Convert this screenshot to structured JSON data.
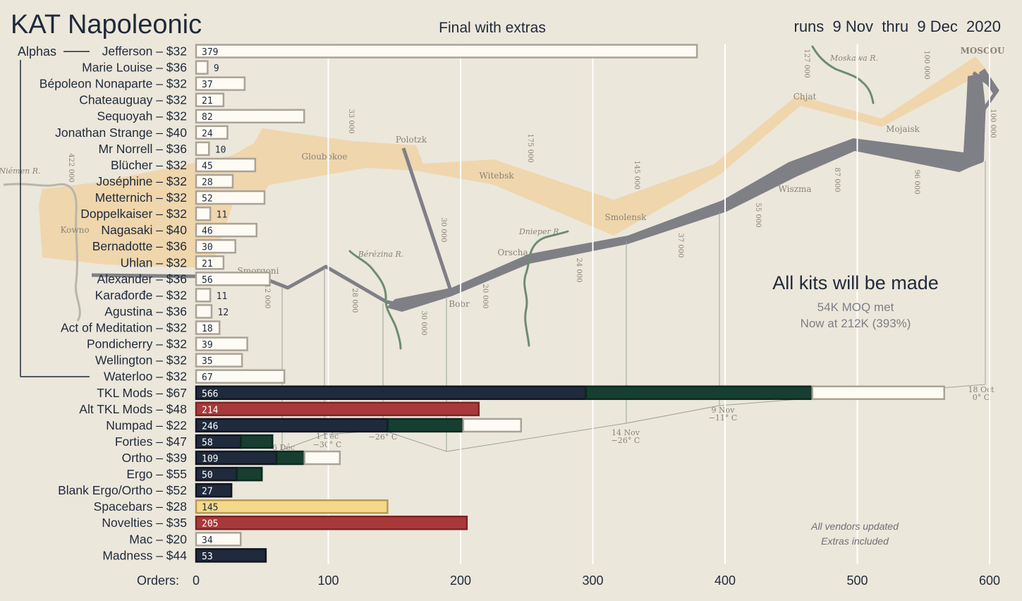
{
  "header": {
    "title": "KAT Napoleonic",
    "subtitle": "Final with extras",
    "runs": "runs  9 Nov  thru  9 Dec  2020"
  },
  "colors": {
    "background": "#ece7db",
    "white_bar": "#fdfbf4",
    "white_bar_border": "#aaa397",
    "navy": "#1f2a3d",
    "green": "#173f31",
    "red": "#a8393a",
    "yellow": "#f5d889",
    "advance_band": "#efd6ad",
    "retreat_band": "#7f7f86",
    "river": "#6d8c72",
    "map_text": "#8a8478",
    "grid": "#ffffff"
  },
  "group": {
    "label": "Alphas"
  },
  "annotation": {
    "headline": "All kits will be made",
    "line1": "54K MOQ met",
    "line2": "Now at 212K (393%)",
    "note1": "All vendors updated",
    "note2": "Extras included"
  },
  "map_labels": {
    "moscou": "MOSCOU",
    "moskwa": "Moskawa R.",
    "chjat": "Chjat",
    "mojaisk": "Mojaisk",
    "wiszma": "Wiszma",
    "smolensk": "Smolensk",
    "witebsk": "Witebsk",
    "polotzk": "Polotzk",
    "gloubokoe": "Gloubokoe",
    "niemen": "Niémen R.",
    "kowno": "Kowno",
    "smorgoni": "Smorgoni",
    "berezina": "Bérézina R.",
    "bobr": "Bobr",
    "orscha": "Orscha",
    "dnieper": "Dnieper R.",
    "n127": "127 000",
    "n100a": "100 000",
    "n100b": "100 000",
    "n175": "175 000",
    "n145": "145 000",
    "n87": "87 000",
    "n96": "96 000",
    "n55": "55 000",
    "n37": "37 000",
    "n24": "24 000",
    "n20": "20 000",
    "n30a": "30 000",
    "n30b": "30 000",
    "n28": "28 000",
    "n12": "12 000",
    "n33": "33 000",
    "n422": "422 000",
    "t18oct": "18 Oct",
    "t18oct_b": "0° C",
    "t9nov": "9 Nov",
    "t9nov_b": "−11° C",
    "t14nov": "14 Nov",
    "t14nov_b": "−26° C",
    "t26": "−26° C",
    "t1dec": "1 Déc",
    "t1dec_b": "−30° C",
    "t6dec": "6 Déc"
  },
  "chart_data": {
    "type": "bar",
    "orientation": "horizontal",
    "stacked": true,
    "xlabel": "Orders:",
    "xlim": [
      0,
      600
    ],
    "xticks": [
      0,
      100,
      200,
      300,
      400,
      500,
      600
    ],
    "grid": true,
    "categories": [
      "Jefferson – $32",
      "Marie Louise – $36",
      "Bépoleon Nonaparte – $32",
      "Chateauguay – $32",
      "Sequoyah – $32",
      "Jonathan Strange – $40",
      "Mr Norrell – $36",
      "Blücher – $32",
      "Joséphine – $32",
      "Metternich – $32",
      "Doppelkaiser – $32",
      "Nagasaki – $40",
      "Bernadotte – $36",
      "Uhlan – $32",
      "Alexander – $36",
      "Karađorđe – $32",
      "Agustina – $36",
      "Act of Meditation – $32",
      "Pondicherry – $32",
      "Wellington – $32",
      "Waterloo – $32",
      "TKL Mods – $67",
      "Alt TKL Mods – $48",
      "Numpad – $22",
      "Forties – $47",
      "Ortho – $39",
      "Ergo – $55",
      "Blank Ergo/Ortho – $52",
      "Spacebars – $28",
      "Novelties – $35",
      "Mac – $20",
      "Madness – $44"
    ],
    "totals": [
      379,
      9,
      37,
      21,
      82,
      24,
      10,
      45,
      28,
      52,
      11,
      46,
      30,
      21,
      56,
      11,
      12,
      18,
      39,
      35,
      67,
      566,
      214,
      246,
      58,
      109,
      50,
      27,
      145,
      205,
      34,
      53
    ],
    "segments": [
      [
        [
          "white",
          379
        ]
      ],
      [
        [
          "white",
          9
        ]
      ],
      [
        [
          "white",
          37
        ]
      ],
      [
        [
          "white",
          21
        ]
      ],
      [
        [
          "white",
          82
        ]
      ],
      [
        [
          "white",
          24
        ]
      ],
      [
        [
          "white",
          10
        ]
      ],
      [
        [
          "white",
          45
        ]
      ],
      [
        [
          "white",
          28
        ]
      ],
      [
        [
          "white",
          52
        ]
      ],
      [
        [
          "white",
          11
        ]
      ],
      [
        [
          "white",
          46
        ]
      ],
      [
        [
          "white",
          30
        ]
      ],
      [
        [
          "white",
          21
        ]
      ],
      [
        [
          "white",
          56
        ]
      ],
      [
        [
          "white",
          11
        ]
      ],
      [
        [
          "white",
          12
        ]
      ],
      [
        [
          "white",
          18
        ]
      ],
      [
        [
          "white",
          39
        ]
      ],
      [
        [
          "white",
          35
        ]
      ],
      [
        [
          "white",
          67
        ]
      ],
      [
        [
          "navy",
          295
        ],
        [
          "green",
          171
        ],
        [
          "white",
          100
        ]
      ],
      [
        [
          "red",
          214
        ]
      ],
      [
        [
          "navy",
          145
        ],
        [
          "green",
          57
        ],
        [
          "white",
          44
        ]
      ],
      [
        [
          "navy",
          34
        ],
        [
          "green",
          24
        ]
      ],
      [
        [
          "navy",
          61
        ],
        [
          "green",
          21
        ],
        [
          "white",
          27
        ]
      ],
      [
        [
          "navy",
          31
        ],
        [
          "green",
          19
        ]
      ],
      [
        [
          "navy",
          27
        ]
      ],
      [
        [
          "yellow",
          145
        ]
      ],
      [
        [
          "red",
          205
        ]
      ],
      [
        [
          "white",
          34
        ]
      ],
      [
        [
          "navy",
          53
        ]
      ]
    ],
    "alphas_range": [
      0,
      20
    ]
  }
}
